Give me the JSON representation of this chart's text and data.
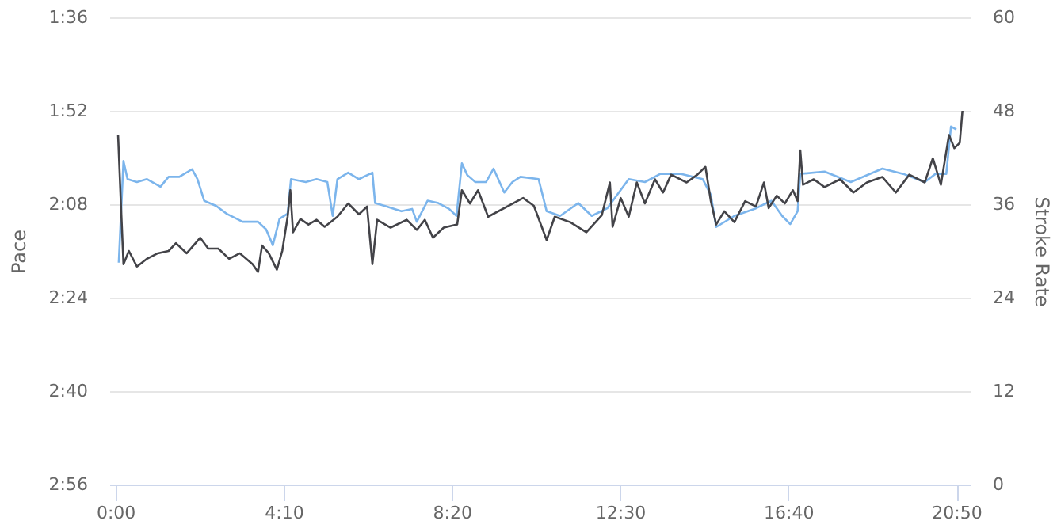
{
  "chart_data": {
    "type": "line",
    "ylabel": "Pace",
    "y2label": "Stroke Rate",
    "grid": "y",
    "x": [
      5,
      12,
      18,
      32,
      47,
      67,
      79,
      95,
      114,
      122,
      132,
      150,
      165,
      189,
      212,
      224,
      234,
      244,
      256,
      261,
      283,
      299,
      315,
      323,
      330,
      346,
      362,
      382,
      386,
      401,
      425,
      441,
      448,
      464,
      480,
      496,
      507,
      515,
      523,
      535,
      551,
      562,
      578,
      590,
      602,
      629,
      641,
      661,
      688,
      708,
      731,
      763,
      787,
      810,
      841,
      873,
      885,
      893,
      920,
      952,
      975,
      991,
      1003,
      1014,
      1018,
      1054,
      1093,
      1140,
      1171,
      1203,
      1219,
      1235,
      1242,
      1250
    ],
    "xlim": [
      -9,
      1270
    ],
    "xticks": [
      {
        "value": 0,
        "label": "0:00"
      },
      {
        "value": 250,
        "label": "4:10"
      },
      {
        "value": 500,
        "label": "8:20"
      },
      {
        "value": 750,
        "label": "12:30"
      },
      {
        "value": 1000,
        "label": "16:40"
      },
      {
        "value": 1250,
        "label": "20:50"
      }
    ],
    "ylim": [
      176,
      96
    ],
    "yticks": [
      {
        "value": 96,
        "label": "1:36"
      },
      {
        "value": 112,
        "label": "1:52"
      },
      {
        "value": 128,
        "label": "2:08"
      },
      {
        "value": 144,
        "label": "2:24"
      },
      {
        "value": 160,
        "label": "2:40"
      },
      {
        "value": 176,
        "label": "2:56"
      }
    ],
    "y2lim": [
      0,
      60
    ],
    "y2ticks": [
      0,
      12,
      24,
      36,
      48,
      60
    ],
    "series": [
      {
        "color": "#7cb5ec",
        "values": [
          138,
          120.6,
          123.7,
          124.2,
          123.7,
          125,
          123.3,
          123.3,
          122,
          123.7,
          127.4,
          128.3,
          129.6,
          131,
          131,
          132.3,
          135,
          130.5,
          129.6,
          123.7,
          124.2,
          123.7,
          124.2,
          130,
          123.7,
          122.6,
          123.7,
          122.6,
          127.8,
          128.3,
          129.2,
          128.8,
          131,
          127.4,
          127.8,
          128.8,
          130,
          121,
          123,
          124.2,
          124.2,
          121.9,
          126,
          124.2,
          123.3,
          123.7,
          129.2,
          130,
          127.8,
          130,
          128.7,
          123.7,
          124.2,
          122.8,
          122.8,
          123.7,
          126.4,
          131.9,
          130,
          128.7,
          127.4,
          130,
          131.4,
          129.2,
          122.8,
          122.4,
          124.2,
          121.9,
          122.8,
          124.2,
          122.8,
          122.8,
          114.7,
          115.2
        ]
      },
      {
        "color": "#434348",
        "axis": "y2",
        "x": [
          4,
          8,
          12,
          20,
          32,
          47,
          63,
          79,
          90,
          106,
          126,
          138,
          153,
          169,
          185,
          204,
          212,
          218,
          228,
          240,
          248,
          256,
          260,
          264,
          275,
          287,
          299,
          311,
          330,
          346,
          362,
          374,
          382,
          389,
          409,
          433,
          448,
          460,
          472,
          488,
          508,
          515,
          527,
          539,
          554,
          606,
          622,
          641,
          653,
          676,
          700,
          723,
          735,
          739,
          751,
          763,
          775,
          787,
          802,
          814,
          826,
          849,
          865,
          877,
          885,
          893,
          905,
          920,
          936,
          952,
          964,
          971,
          983,
          995,
          1007,
          1014,
          1018,
          1022,
          1038,
          1054,
          1077,
          1097,
          1117,
          1140,
          1160,
          1180,
          1203,
          1215,
          1227,
          1239,
          1247,
          1255,
          1259
        ],
        "values": [
          44.9,
          36.4,
          28.3,
          30,
          28,
          29,
          29.7,
          30,
          31,
          29.7,
          31.7,
          30.3,
          30.3,
          29,
          29.7,
          28.3,
          27.3,
          30.7,
          29.7,
          27.6,
          30,
          34.4,
          37.8,
          32.4,
          34.1,
          33.4,
          34,
          33.1,
          34.4,
          36.1,
          34.7,
          35.7,
          28.3,
          34,
          33,
          34,
          32.7,
          34,
          31.7,
          33,
          33.4,
          37.8,
          36.1,
          37.8,
          34.4,
          36.8,
          35.8,
          31.4,
          34.4,
          33.7,
          32.4,
          34.6,
          38.8,
          33.1,
          36.8,
          34.4,
          38.8,
          36.1,
          39.2,
          37.5,
          39.8,
          38.8,
          39.8,
          40.8,
          36.4,
          33.4,
          35.1,
          33.7,
          36.4,
          35.7,
          38.8,
          35.5,
          37.1,
          36.1,
          37.8,
          36.4,
          42.9,
          38.5,
          39.2,
          38.2,
          39.2,
          37.5,
          38.8,
          39.5,
          37.5,
          39.8,
          38.8,
          41.9,
          38.5,
          44.9,
          43.2,
          43.9,
          48
        ]
      }
    ]
  }
}
